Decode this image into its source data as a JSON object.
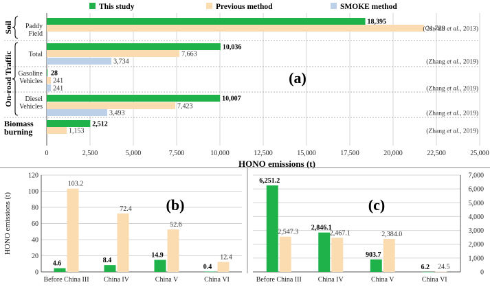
{
  "colors": {
    "this_study": "#1fb24a",
    "previous": "#fbdcb0",
    "smoke": "#bcd1e8",
    "grid": "#d4d4d4",
    "sep": "#9a9a9a"
  },
  "legend": [
    "This study",
    "Previous method",
    "SMOKE method"
  ],
  "chart_data": [
    {
      "type": "bar",
      "orientation": "horizontal",
      "panel": "(a)",
      "xlabel": "HONO emissions  (t)",
      "xlim": [
        0,
        25000
      ],
      "xticks": [
        "0",
        "2,500",
        "5,000",
        "7,500",
        "10,000",
        "12,500",
        "15,000",
        "17,500",
        "20,000",
        "22,500",
        "25,000"
      ],
      "groups": [
        {
          "name": "Soil",
          "categories": [
            "Paddy Field"
          ]
        },
        {
          "name": "On-road Traffic",
          "categories": [
            "Total",
            "Gasoline Vehicles",
            "Diesel Vehicles"
          ]
        },
        {
          "name": "Biomass burning",
          "categories": [
            "Biomass burning"
          ]
        }
      ],
      "rows": [
        {
          "category": "Paddy Field",
          "this_study": 18395,
          "previous": 21789,
          "smoke": null,
          "labels": [
            "18,395",
            "21,789"
          ],
          "citation": "(Oswald et al., 2013)"
        },
        {
          "category": "Total",
          "this_study": 10036,
          "previous": 7663,
          "smoke": 3734,
          "labels": [
            "10,036",
            "7,663",
            "3,734"
          ],
          "citation": "(Zhang et al., 2019)"
        },
        {
          "category": "Gasoline Vehicles",
          "this_study": 28,
          "previous": 241,
          "smoke": 241,
          "labels": [
            "28",
            "241",
            "241"
          ],
          "citation": "(Zhang et al., 2019)"
        },
        {
          "category": "Diesel Vehicles",
          "this_study": 10007,
          "previous": 7423,
          "smoke": 3493,
          "labels": [
            "10,007",
            "7,423",
            "3,493"
          ],
          "citation": "(Zhang et al., 2019)"
        },
        {
          "category": "Biomass burning",
          "this_study": 2512,
          "previous": 1153,
          "smoke": null,
          "labels": [
            "2,512",
            "1,153"
          ],
          "citation": "(Zhang et al., 2019)"
        }
      ],
      "series": [
        {
          "name": "This study",
          "values": [
            18395,
            10036,
            28,
            10007,
            2512
          ]
        },
        {
          "name": "Previous method",
          "values": [
            21789,
            7663,
            241,
            7423,
            1153
          ]
        },
        {
          "name": "SMOKE method",
          "values": [
            null,
            3734,
            241,
            3493,
            null
          ]
        }
      ]
    },
    {
      "type": "bar",
      "panel": "(b)",
      "ylabel": "HONO emissions (t)",
      "ylim": [
        0,
        120
      ],
      "yticks": [
        "0",
        "20",
        "40",
        "60",
        "80",
        "100",
        "120"
      ],
      "categories": [
        "Before China III",
        "China IV",
        "China V",
        "China VI"
      ],
      "series": [
        {
          "name": "This study",
          "values": [
            4.6,
            8.4,
            14.9,
            0.4
          ],
          "labels": [
            "4.6",
            "8.4",
            "14.9",
            "0.4"
          ]
        },
        {
          "name": "Previous method",
          "values": [
            103.2,
            72.4,
            52.6,
            12.4
          ],
          "labels": [
            "103.2",
            "72.4",
            "52.6",
            "12.4"
          ]
        }
      ]
    },
    {
      "type": "bar",
      "panel": "(c)",
      "ylim": [
        0,
        7000
      ],
      "yticks": [
        "0",
        "1,000",
        "2,000",
        "3,000",
        "4,000",
        "5,000",
        "6,000",
        "7,000"
      ],
      "categories": [
        "Before China III",
        "China IV",
        "China V",
        "China VI"
      ],
      "series": [
        {
          "name": "This study",
          "values": [
            6251.2,
            2846.1,
            903.7,
            6.2
          ],
          "labels": [
            "6,251.2",
            "2,846.1",
            "903.7",
            "6.2"
          ]
        },
        {
          "name": "Previous method",
          "values": [
            2547.3,
            2467.1,
            2384.0,
            24.5
          ],
          "labels": [
            "2,547.3",
            "2,467.1",
            "2,384.0",
            "24.5"
          ]
        }
      ]
    }
  ]
}
